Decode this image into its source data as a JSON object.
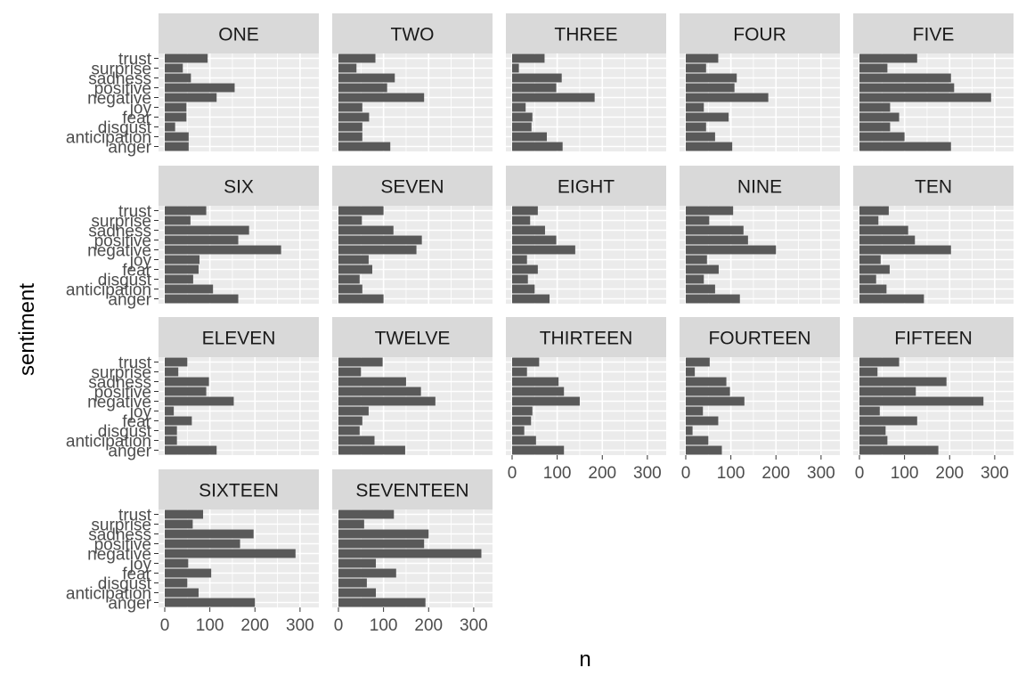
{
  "chart_data": {
    "type": "bar",
    "orientation": "horizontal",
    "xlabel": "n",
    "ylabel": "sentiment",
    "xlim": [
      0,
      320
    ],
    "x_ticks": [
      0,
      100,
      200,
      300
    ],
    "grid": true,
    "legend": "none",
    "facet_columns": 5,
    "categories": [
      "trust",
      "surprise",
      "sadness",
      "positive",
      "negative",
      "joy",
      "fear",
      "disgust",
      "anticipation",
      "anger"
    ],
    "colors": {
      "bar": "#595959",
      "panel": "#ebebeb",
      "strip": "#d9d9d9",
      "grid": "#ffffff"
    },
    "facets": [
      {
        "name": "ONE",
        "values": [
          95,
          40,
          58,
          155,
          115,
          48,
          48,
          23,
          53,
          53
        ]
      },
      {
        "name": "TWO",
        "values": [
          82,
          40,
          125,
          108,
          190,
          53,
          68,
          53,
          53,
          115
        ]
      },
      {
        "name": "THREE",
        "values": [
          72,
          15,
          110,
          98,
          183,
          30,
          45,
          43,
          77,
          112
        ]
      },
      {
        "name": "FOUR",
        "values": [
          72,
          45,
          113,
          108,
          183,
          40,
          95,
          45,
          65,
          103
        ]
      },
      {
        "name": "FIVE",
        "values": [
          128,
          62,
          203,
          210,
          292,
          68,
          88,
          68,
          100,
          203
        ]
      },
      {
        "name": "SIX",
        "values": [
          92,
          57,
          187,
          163,
          258,
          77,
          75,
          63,
          107,
          163
        ]
      },
      {
        "name": "SEVEN",
        "values": [
          100,
          52,
          122,
          185,
          173,
          67,
          75,
          47,
          53,
          100
        ]
      },
      {
        "name": "EIGHT",
        "values": [
          57,
          40,
          73,
          98,
          140,
          33,
          57,
          35,
          50,
          83
        ]
      },
      {
        "name": "NINE",
        "values": [
          105,
          52,
          128,
          138,
          200,
          47,
          73,
          40,
          65,
          120
        ]
      },
      {
        "name": "TEN",
        "values": [
          65,
          42,
          108,
          123,
          203,
          47,
          67,
          37,
          60,
          143
        ]
      },
      {
        "name": "ELEVEN",
        "values": [
          50,
          30,
          98,
          92,
          153,
          20,
          60,
          27,
          27,
          115
        ]
      },
      {
        "name": "TWELVE",
        "values": [
          98,
          50,
          150,
          183,
          215,
          67,
          53,
          47,
          80,
          148
        ]
      },
      {
        "name": "THIRTEEN",
        "values": [
          60,
          33,
          103,
          115,
          150,
          45,
          42,
          27,
          53,
          115
        ]
      },
      {
        "name": "FOURTEEN",
        "values": [
          53,
          20,
          90,
          98,
          130,
          38,
          72,
          15,
          50,
          80
        ]
      },
      {
        "name": "FIFTEEN",
        "values": [
          88,
          40,
          193,
          125,
          275,
          45,
          128,
          58,
          62,
          175
        ]
      },
      {
        "name": "SIXTEEN",
        "values": [
          85,
          62,
          197,
          167,
          290,
          52,
          103,
          50,
          75,
          200
        ]
      },
      {
        "name": "SEVENTEEN",
        "values": [
          123,
          57,
          200,
          190,
          317,
          83,
          128,
          63,
          83,
          193
        ]
      }
    ]
  }
}
